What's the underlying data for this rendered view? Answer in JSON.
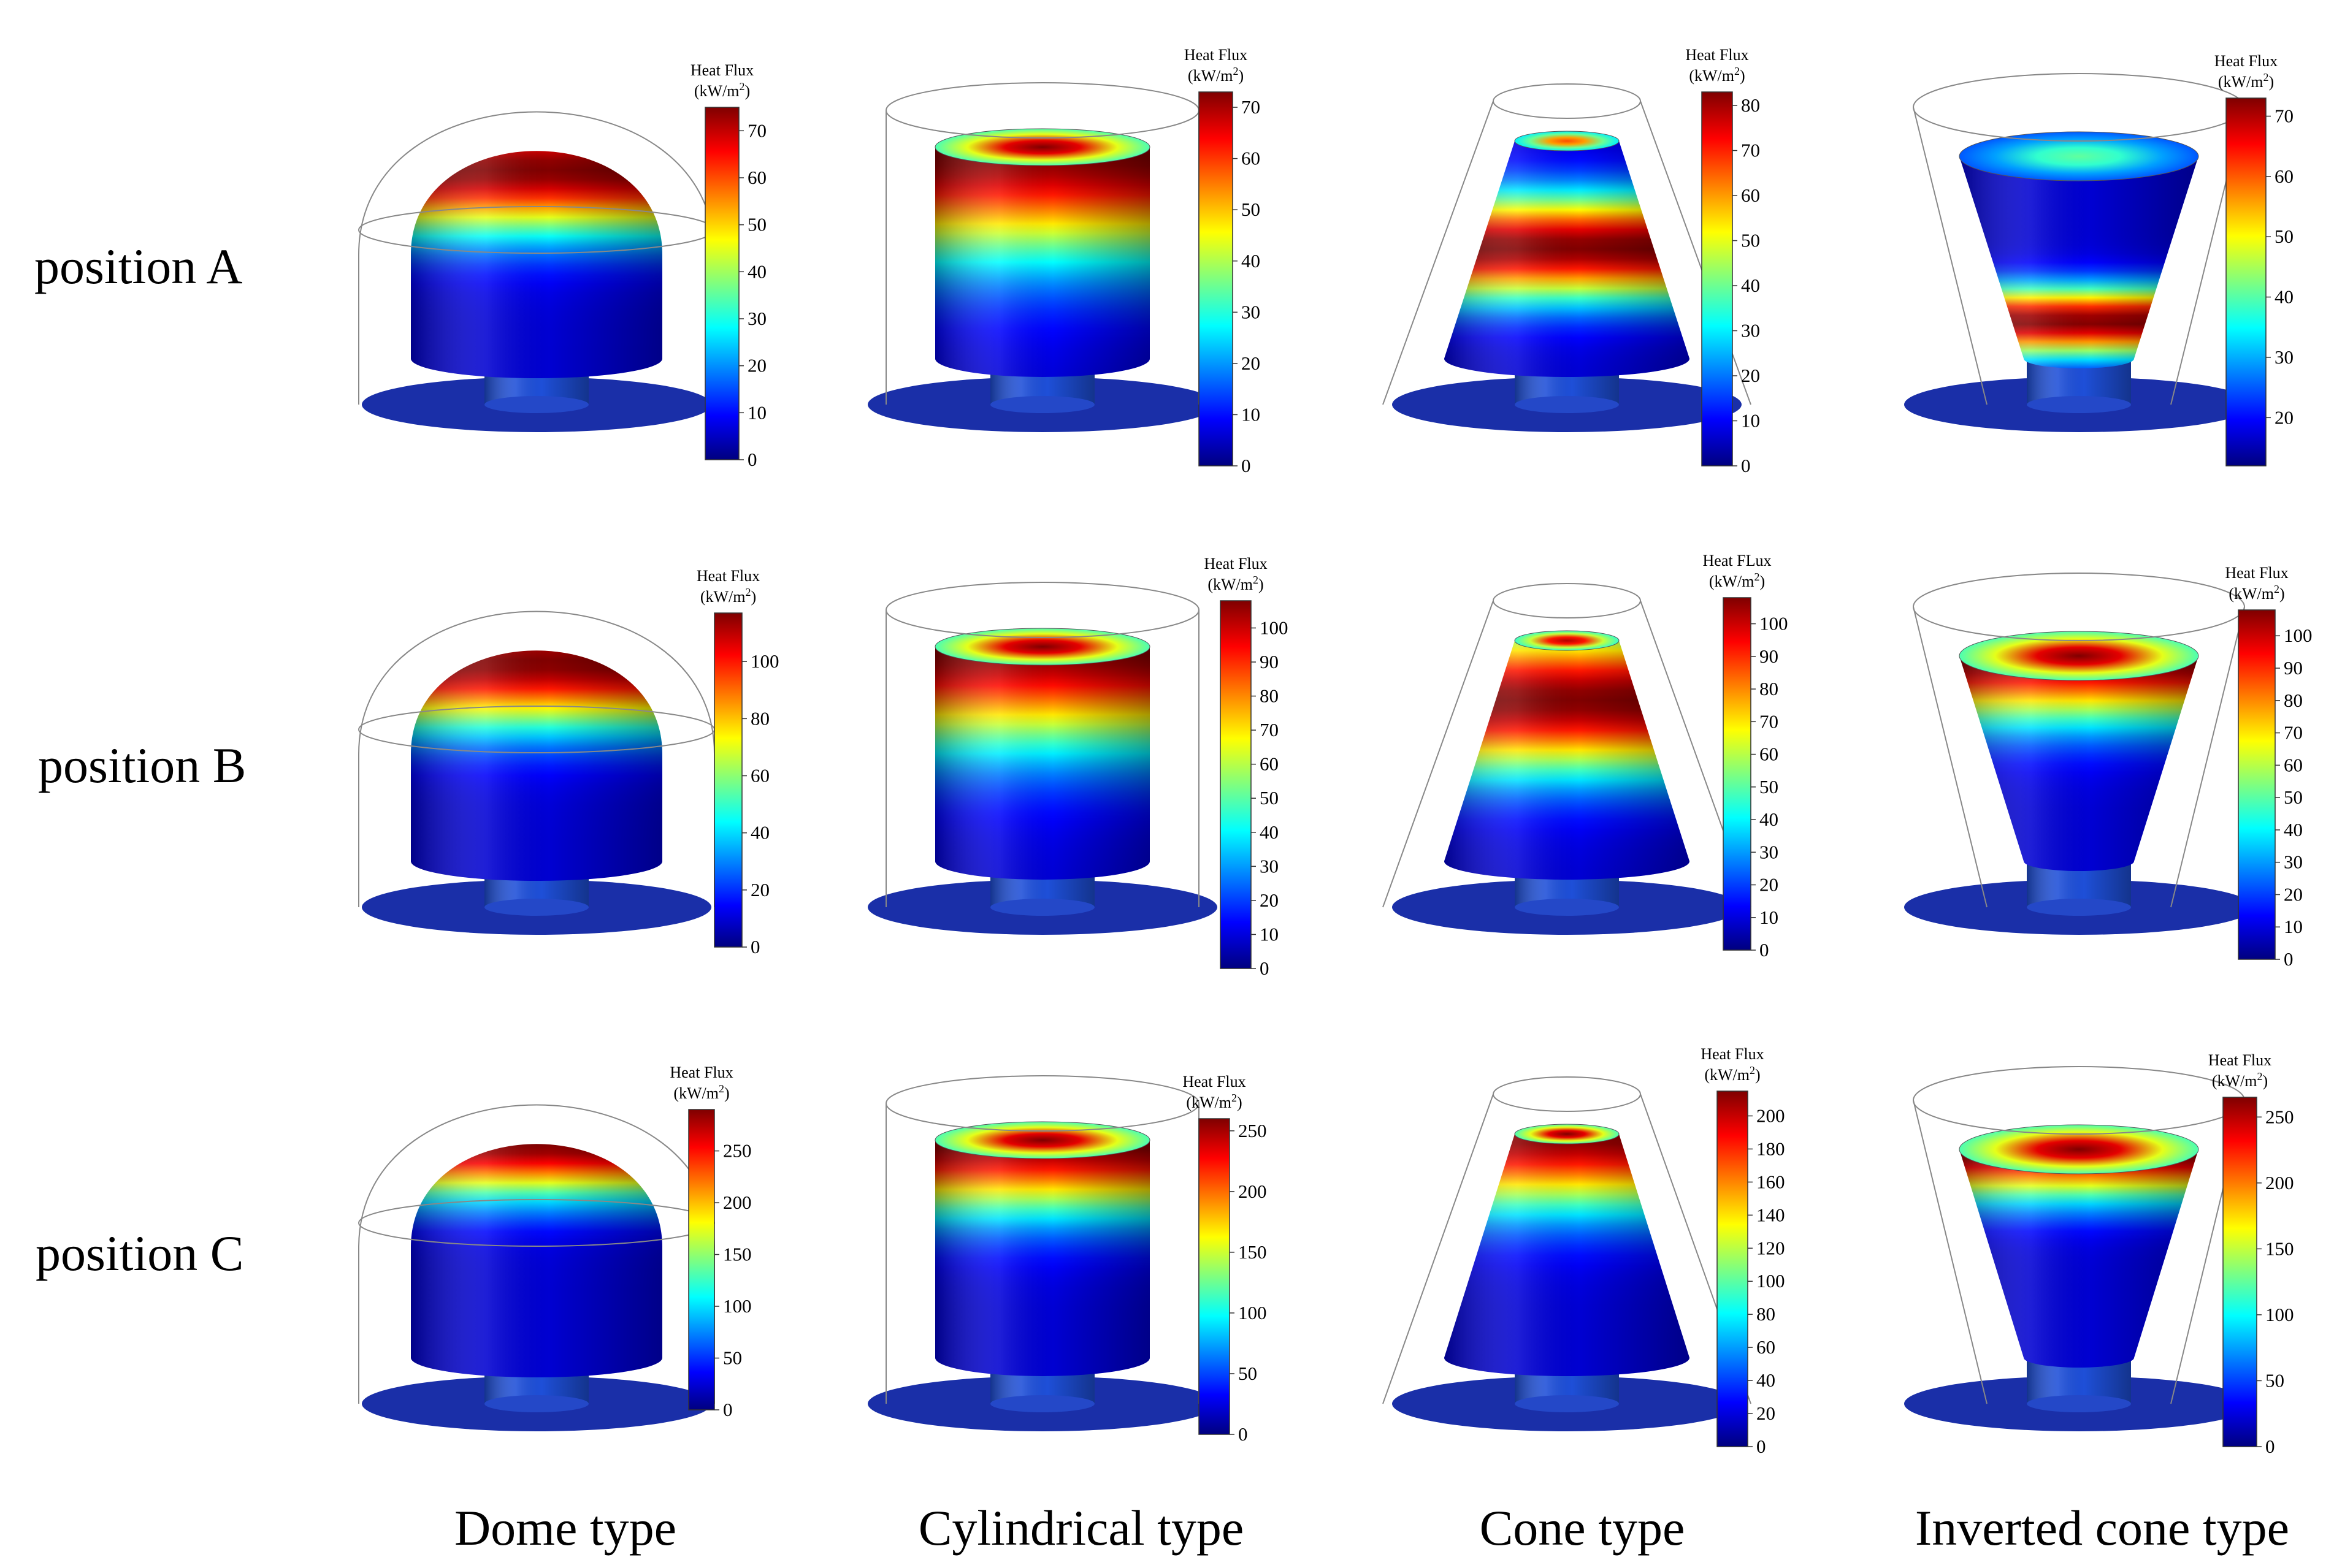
{
  "figure": {
    "row_labels": [
      "position A",
      "position B",
      "position C"
    ],
    "column_labels": [
      "Dome type",
      "Cylindrical type",
      "Cone type",
      "Inverted cone type"
    ],
    "colormap": [
      "#00007f",
      "#0000ff",
      "#007fff",
      "#00ffff",
      "#7fff7f",
      "#ffff00",
      "#ff7f00",
      "#ff0000",
      "#7f0000"
    ],
    "panels": [
      {
        "row": "position A",
        "shape": "dome",
        "legend": {
          "title": "Heat Flux",
          "unit_prefix": "(kW/m",
          "unit_sup": "2",
          "unit_suffix": ")",
          "min": 0,
          "max": 75,
          "ticks": [
            "0",
            "10",
            "20",
            "30",
            "40",
            "50",
            "60",
            "70"
          ]
        },
        "peak": 0.92,
        "peak_width": 0.28
      },
      {
        "row": "position A",
        "shape": "cylinder",
        "legend": {
          "title": "Heat Flux",
          "unit_prefix": "(kW/m",
          "unit_sup": "2",
          "unit_suffix": ")",
          "min": 0,
          "max": 73,
          "ticks": [
            "0",
            "10",
            "20",
            "30",
            "40",
            "50",
            "60",
            "70"
          ]
        },
        "peak": 0.98,
        "peak_width": 0.45
      },
      {
        "row": "position A",
        "shape": "cone",
        "legend": {
          "title": "Heat Flux",
          "unit_prefix": "(kW/m",
          "unit_sup": "2",
          "unit_suffix": ")",
          "min": 0,
          "max": 83,
          "ticks": [
            "0",
            "10",
            "20",
            "30",
            "40",
            "50",
            "60",
            "70",
            "80"
          ]
        },
        "peak": 0.55,
        "peak_width": 0.22
      },
      {
        "row": "position A",
        "shape": "inverted-cone",
        "legend": {
          "title": "Heat Flux",
          "unit_prefix": "(kW/m",
          "unit_sup": "2",
          "unit_suffix": ")",
          "min": 12,
          "max": 73,
          "ticks": [
            "20",
            "30",
            "40",
            "50",
            "60",
            "70"
          ]
        },
        "peak": 0.22,
        "peak_width": 0.16
      },
      {
        "row": "position B",
        "shape": "dome",
        "legend": {
          "title": "Heat Flux",
          "unit_prefix": "(kW/m",
          "unit_sup": "2",
          "unit_suffix": ")",
          "min": 0,
          "max": 117,
          "ticks": [
            "0",
            "20",
            "40",
            "60",
            "80",
            "100"
          ]
        },
        "peak": 0.95,
        "peak_width": 0.28
      },
      {
        "row": "position B",
        "shape": "cylinder",
        "legend": {
          "title": "Heat Flux",
          "unit_prefix": "(kW/m",
          "unit_sup": "2",
          "unit_suffix": ")",
          "min": 0,
          "max": 108,
          "ticks": [
            "0",
            "10",
            "20",
            "30",
            "40",
            "50",
            "60",
            "70",
            "80",
            "90",
            "100"
          ]
        },
        "peak": 1.0,
        "peak_width": 0.42
      },
      {
        "row": "position B",
        "shape": "cone",
        "legend": {
          "title": "Heat FLux",
          "unit_prefix": "(kW/m",
          "unit_sup": "2",
          "unit_suffix": ")",
          "min": 0,
          "max": 108,
          "ticks": [
            "0",
            "10",
            "20",
            "30",
            "40",
            "50",
            "60",
            "70",
            "80",
            "90",
            "100"
          ]
        },
        "peak": 0.75,
        "peak_width": 0.3
      },
      {
        "row": "position B",
        "shape": "inverted-cone",
        "legend": {
          "title": "Heat Flux",
          "unit_prefix": "(kW/m",
          "unit_sup": "2",
          "unit_suffix": ")",
          "min": 0,
          "max": 108,
          "ticks": [
            "0",
            "10",
            "20",
            "30",
            "40",
            "50",
            "60",
            "70",
            "80",
            "90",
            "100"
          ]
        },
        "peak": 1.0,
        "peak_width": 0.3
      },
      {
        "row": "position C",
        "shape": "dome",
        "legend": {
          "title": "Heat Flux",
          "unit_prefix": "(kW/m",
          "unit_sup": "2",
          "unit_suffix": ")",
          "min": 0,
          "max": 290,
          "ticks": [
            "0",
            "50",
            "100",
            "150",
            "200",
            "250"
          ]
        },
        "peak": 1.0,
        "peak_width": 0.22
      },
      {
        "row": "position C",
        "shape": "cylinder",
        "legend": {
          "title": "Heat Flux",
          "unit_prefix": "(kW/m",
          "unit_sup": "2",
          "unit_suffix": ")",
          "min": 0,
          "max": 260,
          "ticks": [
            "0",
            "50",
            "100",
            "150",
            "200",
            "250"
          ]
        },
        "peak": 1.0,
        "peak_width": 0.3
      },
      {
        "row": "position C",
        "shape": "cone",
        "legend": {
          "title": "Heat Flux",
          "unit_prefix": "(kW/m",
          "unit_sup": "2",
          "unit_suffix": ")",
          "min": 0,
          "max": 215,
          "ticks": [
            "0",
            "20",
            "40",
            "60",
            "80",
            "100",
            "120",
            "140",
            "160",
            "180",
            "200"
          ]
        },
        "peak": 1.0,
        "peak_width": 0.3
      },
      {
        "row": "position C",
        "shape": "inverted-cone",
        "legend": {
          "title": "Heat Flux",
          "unit_prefix": "(kW/m",
          "unit_sup": "2",
          "unit_suffix": ")",
          "min": 0,
          "max": 265,
          "ticks": [
            "0",
            "50",
            "100",
            "150",
            "200",
            "250"
          ]
        },
        "peak": 1.0,
        "peak_width": 0.22
      }
    ]
  }
}
